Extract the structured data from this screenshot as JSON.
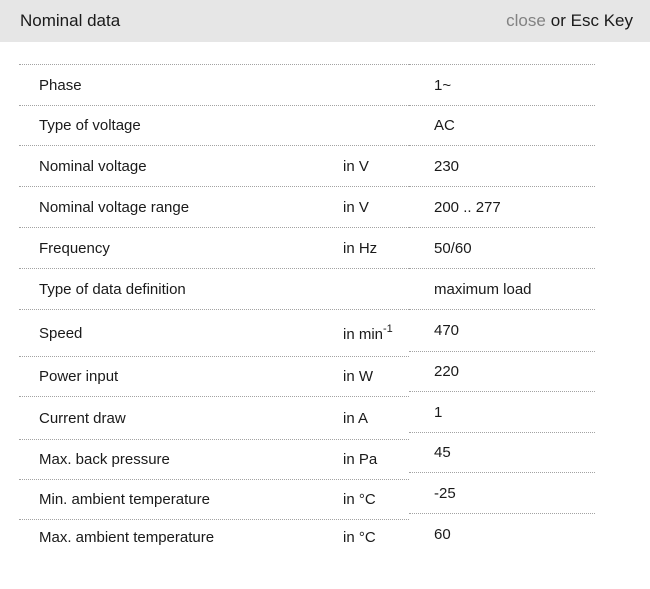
{
  "header": {
    "title": "Nominal data",
    "close_label": "close",
    "esc_hint": "or Esc Key"
  },
  "colors": {
    "header_bg": "#e6e6e6",
    "close_link": "#828282",
    "text": "#1a1a1a",
    "row_border": "#a3a3a3"
  },
  "table": {
    "rows": [
      {
        "label": "Phase",
        "unit": "",
        "unit_sup": "",
        "value": "1~"
      },
      {
        "label": "Type of voltage",
        "unit": "",
        "unit_sup": "",
        "value": "AC"
      },
      {
        "label": "Nominal voltage",
        "unit": "in V",
        "unit_sup": "",
        "value": "230"
      },
      {
        "label": "Nominal voltage range",
        "unit": "in V",
        "unit_sup": "",
        "value": "200 .. 277"
      },
      {
        "label": "Frequency",
        "unit": "in Hz",
        "unit_sup": "",
        "value": "50/60"
      },
      {
        "label": "Type of data definition",
        "unit": "",
        "unit_sup": "",
        "value": "maximum load"
      },
      {
        "label": "Speed",
        "unit": "in min",
        "unit_sup": "-1",
        "value": "470"
      },
      {
        "label": "Power input",
        "unit": "in W",
        "unit_sup": "",
        "value": "220"
      },
      {
        "label": "Current draw",
        "unit": "in A",
        "unit_sup": "",
        "value": "1"
      },
      {
        "label": "Max. back pressure",
        "unit": "in Pa",
        "unit_sup": "",
        "value": "45"
      },
      {
        "label": "Min. ambient temperature",
        "unit": "in °C",
        "unit_sup": "",
        "value": "-25"
      },
      {
        "label": "Max. ambient temperature",
        "unit": "in °C",
        "unit_sup": "",
        "value": "60"
      }
    ]
  }
}
